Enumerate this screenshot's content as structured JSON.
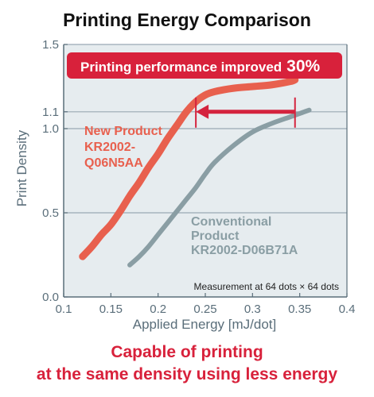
{
  "chart_data": {
    "type": "line",
    "title": "Printing Energy Comparison",
    "xlabel": "Applied Energy [mJ/dot]",
    "ylabel": "Print Density",
    "xlim": [
      0.1,
      0.4
    ],
    "ylim": [
      0.0,
      1.5
    ],
    "x_ticks": [
      0.1,
      0.15,
      0.2,
      0.25,
      0.3,
      0.35,
      0.4
    ],
    "x_tick_labels": [
      "0.1",
      "0.15",
      "0.2",
      "0.25",
      "0.3",
      "0.35",
      "0.4"
    ],
    "y_ticks": [
      0.0,
      0.5,
      1.0,
      1.1,
      1.5
    ],
    "y_tick_labels": [
      "0.0",
      "0.5",
      "1.0",
      "1.1",
      "1.5"
    ],
    "grid": "horizontal at labeled y ticks",
    "series": [
      {
        "name": "New Product KR2002-Q06N5AA",
        "label_lines": [
          "New Product",
          "KR2002-",
          "Q06N5AA"
        ],
        "color": "#e8604e",
        "points": [
          [
            0.12,
            0.24
          ],
          [
            0.13,
            0.3
          ],
          [
            0.14,
            0.37
          ],
          [
            0.15,
            0.43
          ],
          [
            0.16,
            0.51
          ],
          [
            0.17,
            0.6
          ],
          [
            0.18,
            0.68
          ],
          [
            0.19,
            0.77
          ],
          [
            0.2,
            0.85
          ],
          [
            0.21,
            0.94
          ],
          [
            0.22,
            1.02
          ],
          [
            0.23,
            1.1
          ],
          [
            0.24,
            1.16
          ],
          [
            0.25,
            1.2
          ],
          [
            0.26,
            1.22
          ],
          [
            0.28,
            1.24
          ],
          [
            0.3,
            1.25
          ],
          [
            0.32,
            1.26
          ],
          [
            0.34,
            1.28
          ],
          [
            0.345,
            1.29
          ]
        ]
      },
      {
        "name": "Conventional Product KR2002-D06B71A",
        "label_lines": [
          "Conventional",
          "Product",
          "KR2002-D06B71A"
        ],
        "color": "#8a9ea4",
        "points": [
          [
            0.17,
            0.19
          ],
          [
            0.18,
            0.24
          ],
          [
            0.19,
            0.3
          ],
          [
            0.2,
            0.37
          ],
          [
            0.21,
            0.44
          ],
          [
            0.22,
            0.51
          ],
          [
            0.23,
            0.58
          ],
          [
            0.24,
            0.65
          ],
          [
            0.25,
            0.73
          ],
          [
            0.26,
            0.8
          ],
          [
            0.28,
            0.9
          ],
          [
            0.3,
            0.98
          ],
          [
            0.32,
            1.03
          ],
          [
            0.34,
            1.07
          ],
          [
            0.35,
            1.09
          ],
          [
            0.36,
            1.11
          ]
        ]
      }
    ],
    "annotations": {
      "banner_text": "Printing performance improved",
      "banner_value": "30%",
      "arrow": {
        "from": [
          0.345,
          1.1
        ],
        "to": [
          0.24,
          1.1
        ]
      },
      "measurement_note": "Measurement at 64 dots × 64 dots"
    }
  },
  "caption": {
    "line1": "Capable of printing",
    "line2": "at the same density using less energy"
  },
  "colors": {
    "axis": "#5a6e7a",
    "grid": "#9aa9b3",
    "plot_bg": "#e6ecef",
    "banner": "#d8213b",
    "arrow": "#d4233e",
    "caption": "#d8213b",
    "title": "#111111"
  }
}
